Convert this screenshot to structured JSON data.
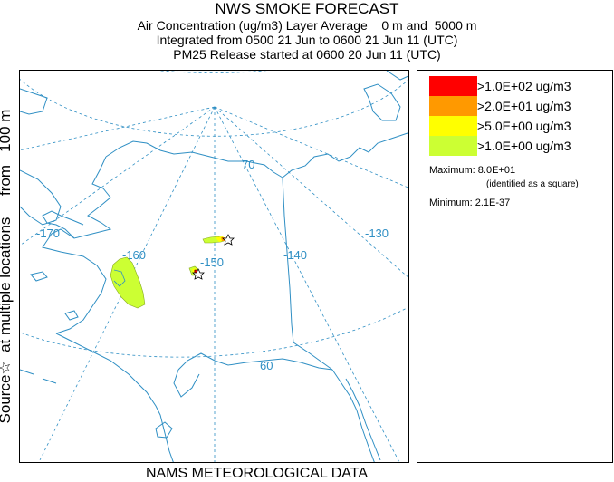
{
  "header": {
    "title": "NWS SMOKE FORECAST",
    "line1": "Air Concentration (ug/m3) Layer Average    0 m and  5000 m",
    "line2": "Integrated from 0500 21 Jun to 0600 21 Jun 11 (UTC)",
    "line3": "PM25 Release started at 0600 20 Jun 11 (UTC)"
  },
  "side_label": "Source☆  at multiple locations     from   100 m",
  "footer": "NAMS METEOROLOGICAL DATA",
  "map": {
    "grid_labels": {
      "lon_170": "-170",
      "lon_160": "-160",
      "lon_150": "-150",
      "lon_140": "-140",
      "lon_130": "-130",
      "lat_70": "70",
      "lat_60": "60"
    },
    "colors": {
      "coast": "#2f8fc4",
      "grid": "#2f8fc4",
      "plume_low": "#ccff33",
      "plume_mid": "#ffff00",
      "plume_high": "#ff9900",
      "plume_max": "#ff0000"
    }
  },
  "legend": {
    "items": [
      {
        "label": ">1.0E+02 ug/m3",
        "color": "#ff0000"
      },
      {
        "label": ">2.0E+01 ug/m3",
        "color": "#ff9900"
      },
      {
        "label": ">5.0E+00 ug/m3",
        "color": "#ffff00"
      },
      {
        "label": ">1.0E+00 ug/m3",
        "color": "#ccff33"
      }
    ],
    "maximum": "Maximum: 8.0E+01",
    "maximum_note": "(identified as a square)",
    "minimum": "Minimum: 2.1E-37"
  }
}
